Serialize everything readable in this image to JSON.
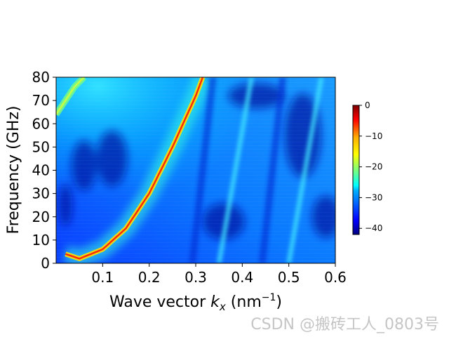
{
  "chart_data": {
    "type": "heatmap",
    "title": "",
    "xlabel_main": "Wave vector ",
    "xlabel_var": "k",
    "xlabel_sub": "x",
    "xlabel_unit": " (nm",
    "xlabel_exp": "−1",
    "xlabel_close": ")",
    "ylabel": "Frequency (GHz)",
    "xlim": [
      0.0,
      0.6
    ],
    "ylim": [
      0,
      80
    ],
    "xticks": [
      0.1,
      0.2,
      0.3,
      0.4,
      0.5,
      0.6
    ],
    "xtick_labels": [
      "0.1",
      "0.2",
      "0.3",
      "0.4",
      "0.5",
      "0.6"
    ],
    "yticks": [
      0,
      10,
      20,
      30,
      40,
      50,
      60,
      70,
      80
    ],
    "ytick_labels": [
      "0",
      "10",
      "20",
      "30",
      "40",
      "50",
      "60",
      "70",
      "80"
    ],
    "colormap": "jet",
    "colorbar": {
      "range": [
        -42,
        0
      ],
      "ticks": [
        0,
        -10,
        -20,
        -30,
        -40
      ],
      "tick_labels": [
        "0",
        "−10",
        "−20",
        "−30",
        "−40"
      ]
    },
    "features": {
      "main_branch": {
        "description_points_k": [
          0.02,
          0.05,
          0.1,
          0.15,
          0.2,
          0.25,
          0.3,
          0.315
        ],
        "freq_GHz": [
          4,
          2,
          6,
          15,
          30,
          50,
          72,
          80
        ]
      },
      "upper_branch": {
        "k": [
          0.0,
          0.02,
          0.04,
          0.06
        ],
        "freq_GHz": [
          64,
          70,
          76,
          80
        ]
      },
      "bright_streaks_k_at_0GHz": [
        0.35,
        0.5
      ],
      "bright_streaks_k_at_80GHz": [
        0.42,
        0.57
      ]
    }
  },
  "watermark": "CSDN @搬砖工人_0803号"
}
